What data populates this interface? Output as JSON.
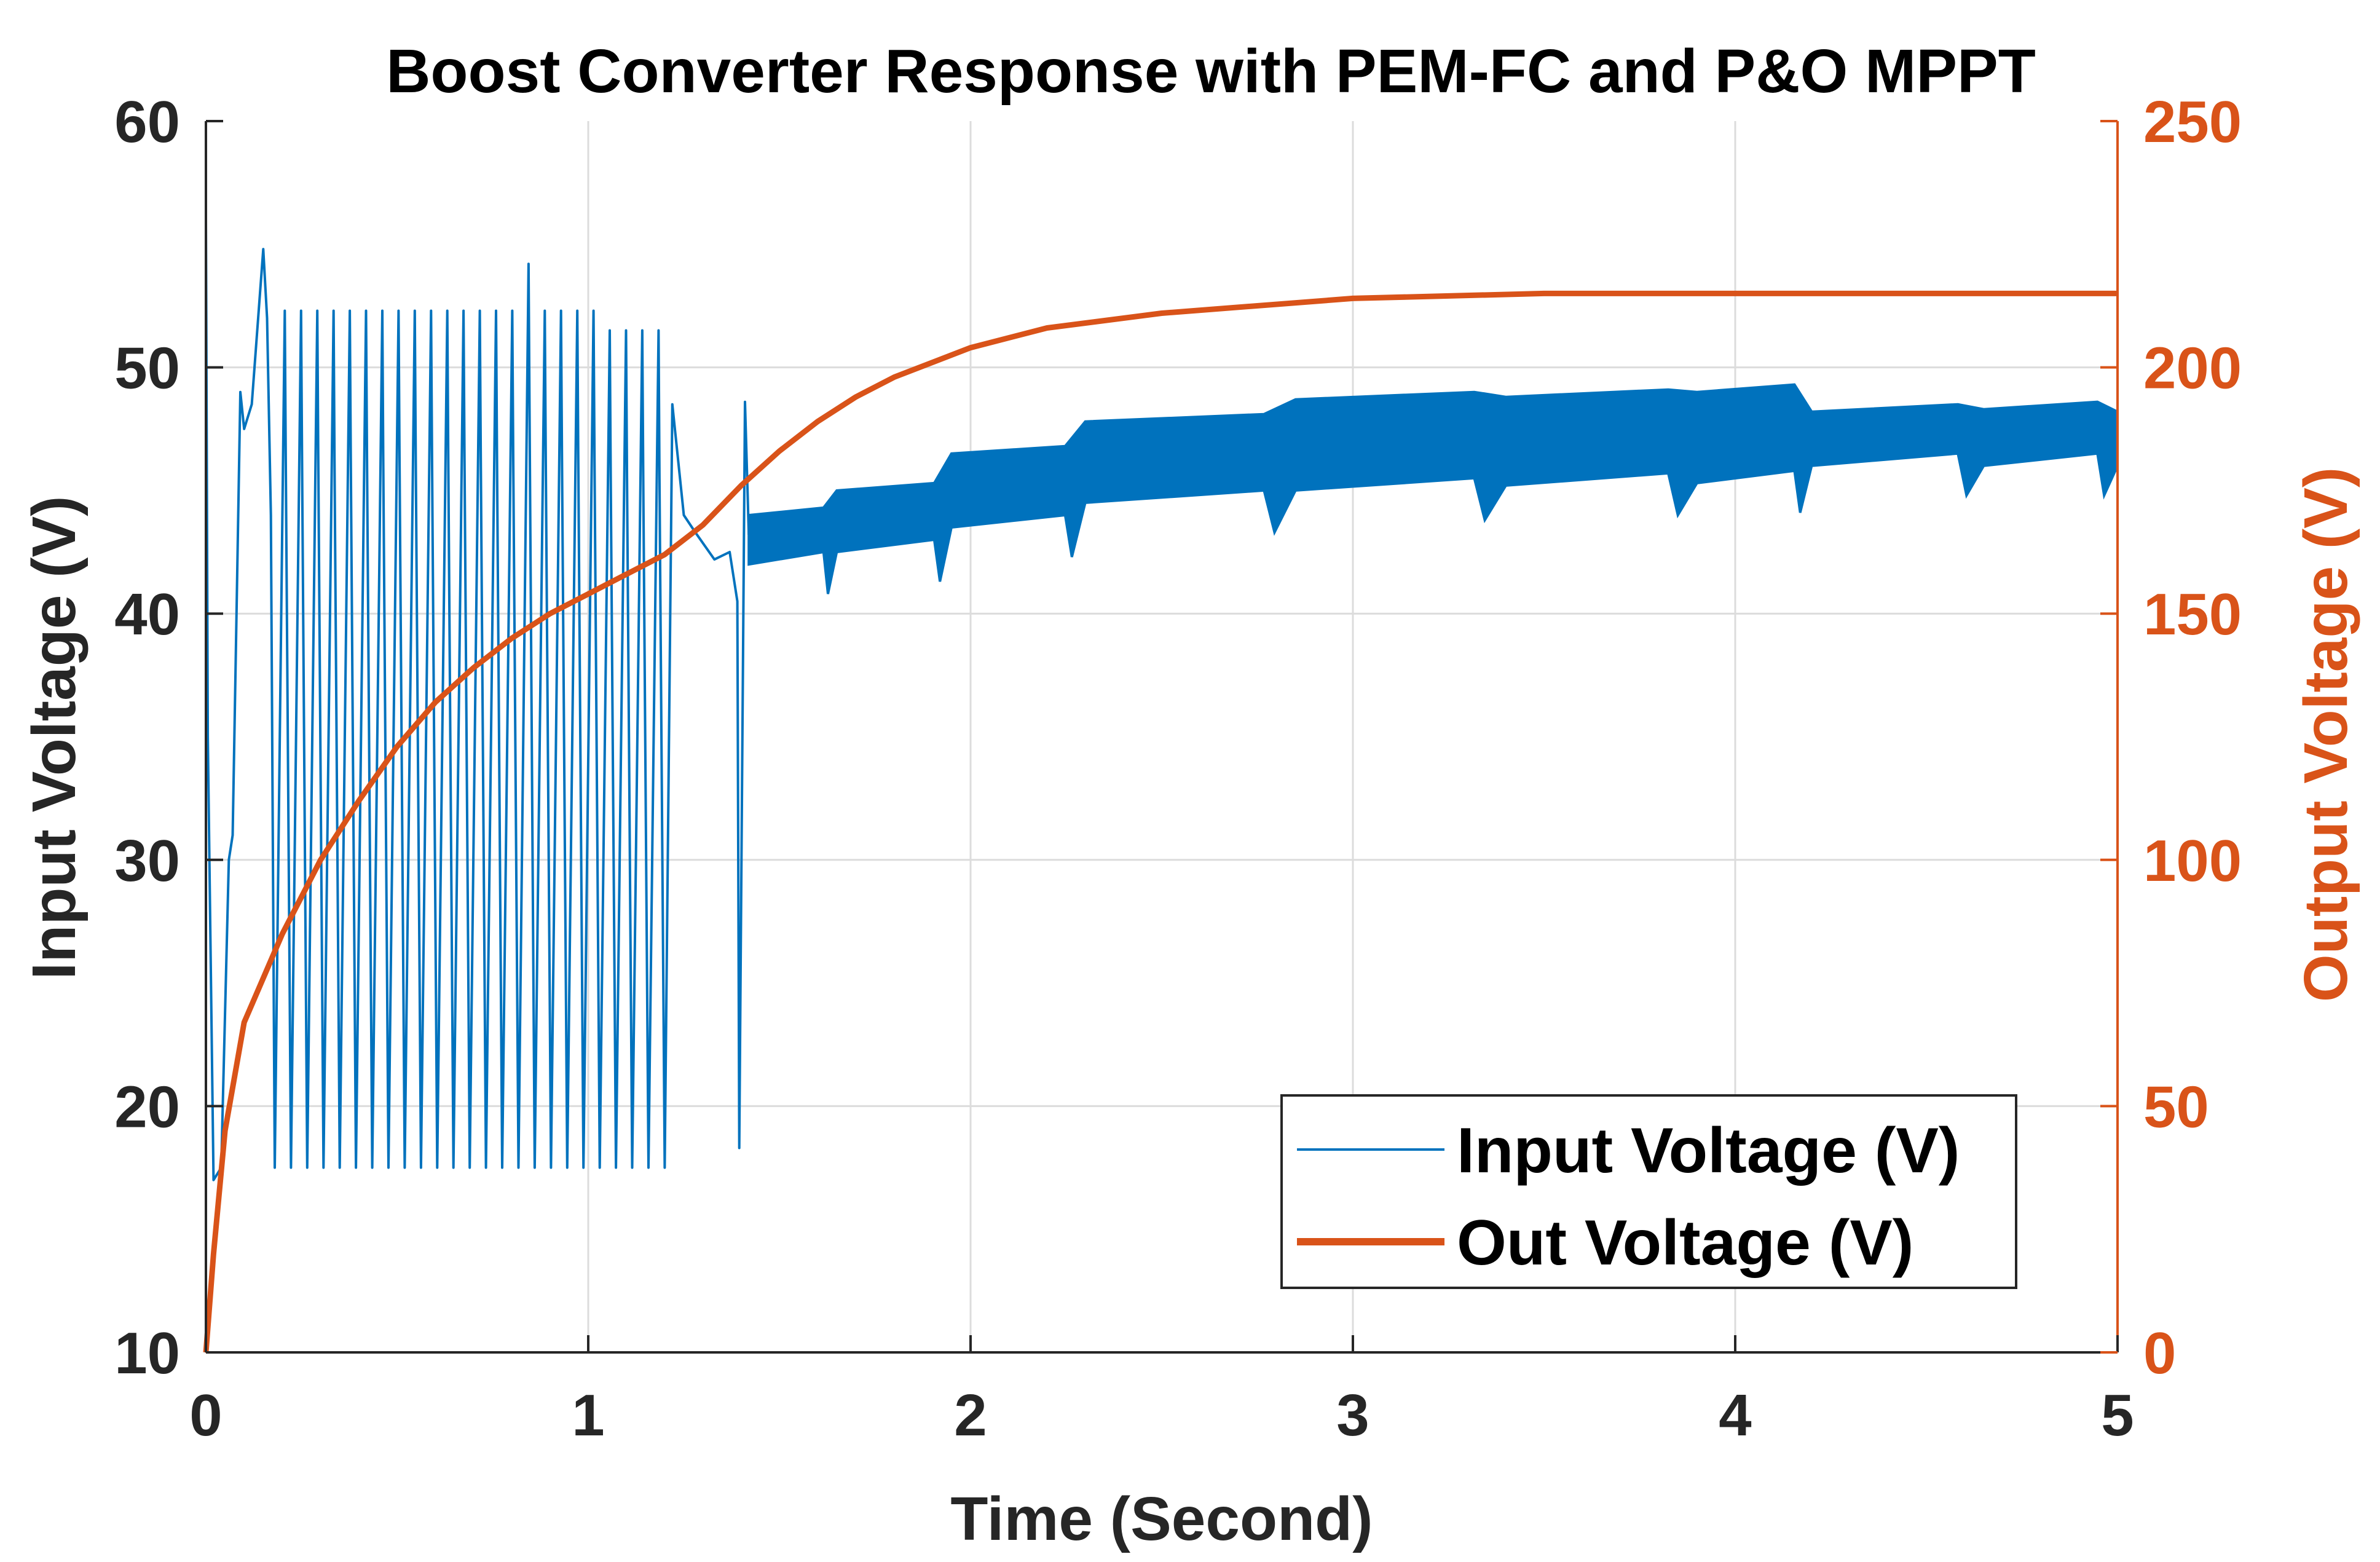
{
  "chart_data": {
    "type": "line",
    "title": "Boost Converter Response with PEM-FC and P&O MPPT",
    "xlabel": "Time (Second)",
    "ylabel_left": "Input Voltage (V)",
    "ylabel_right": "Output Voltage (V)",
    "xlim": [
      0,
      5
    ],
    "ylim_left": [
      10,
      60
    ],
    "ylim_right": [
      0,
      250
    ],
    "xticks": [
      "0",
      "1",
      "2",
      "3",
      "4",
      "5"
    ],
    "yticks_left": [
      "10",
      "20",
      "30",
      "40",
      "50",
      "60"
    ],
    "yticks_right": [
      "0",
      "50",
      "100",
      "150",
      "200",
      "250"
    ],
    "grid": true,
    "legend_position": "bottom-right",
    "colors": {
      "input": "#0072BD",
      "output": "#D95319",
      "axis": "#262626"
    },
    "series": [
      {
        "name": "Input Voltage (V)",
        "axis": "left",
        "description": "Oscillating startup between ~17.5 and ~52 V until ~1.4 s, then P&O MPPT band settling near 46–48 V",
        "oscillation_region": {
          "t_start": 0.18,
          "t_end": 1.4,
          "low": 17.5,
          "high": 52.3
        },
        "envelope": [
          {
            "t": 1.42,
            "low": 42.0,
            "high": 44.0
          },
          {
            "t": 1.65,
            "low": 42.5,
            "high": 45.0
          },
          {
            "t": 1.95,
            "low": 43.5,
            "high": 46.5
          },
          {
            "t": 2.3,
            "low": 44.5,
            "high": 47.8
          },
          {
            "t": 2.85,
            "low": 45.0,
            "high": 48.7
          },
          {
            "t": 3.4,
            "low": 45.2,
            "high": 48.8
          },
          {
            "t": 3.9,
            "low": 45.3,
            "high": 49.0
          },
          {
            "t": 4.2,
            "low": 46.0,
            "high": 48.2
          },
          {
            "t": 4.65,
            "low": 46.0,
            "high": 48.3
          },
          {
            "t": 5.0,
            "low": 46.0,
            "high": 48.2
          }
        ]
      },
      {
        "name": "Out Voltage (V)",
        "axis": "right",
        "x": [
          0,
          0.02,
          0.05,
          0.1,
          0.15,
          0.2,
          0.3,
          0.4,
          0.5,
          0.6,
          0.7,
          0.8,
          0.9,
          1.0,
          1.1,
          1.2,
          1.3,
          1.4,
          1.5,
          1.6,
          1.7,
          1.8,
          2.0,
          2.2,
          2.5,
          3.0,
          3.5,
          4.0,
          4.5,
          5.0
        ],
        "values": [
          0,
          20,
          45,
          67,
          76,
          85,
          100,
          112,
          123,
          132,
          139,
          145,
          150,
          154,
          158,
          162,
          168,
          176,
          183,
          189,
          194,
          198,
          204,
          208,
          211,
          214,
          215,
          215,
          215,
          215
        ]
      }
    ],
    "legend": [
      "Input Voltage (V)",
      "Out Voltage (V)"
    ]
  }
}
